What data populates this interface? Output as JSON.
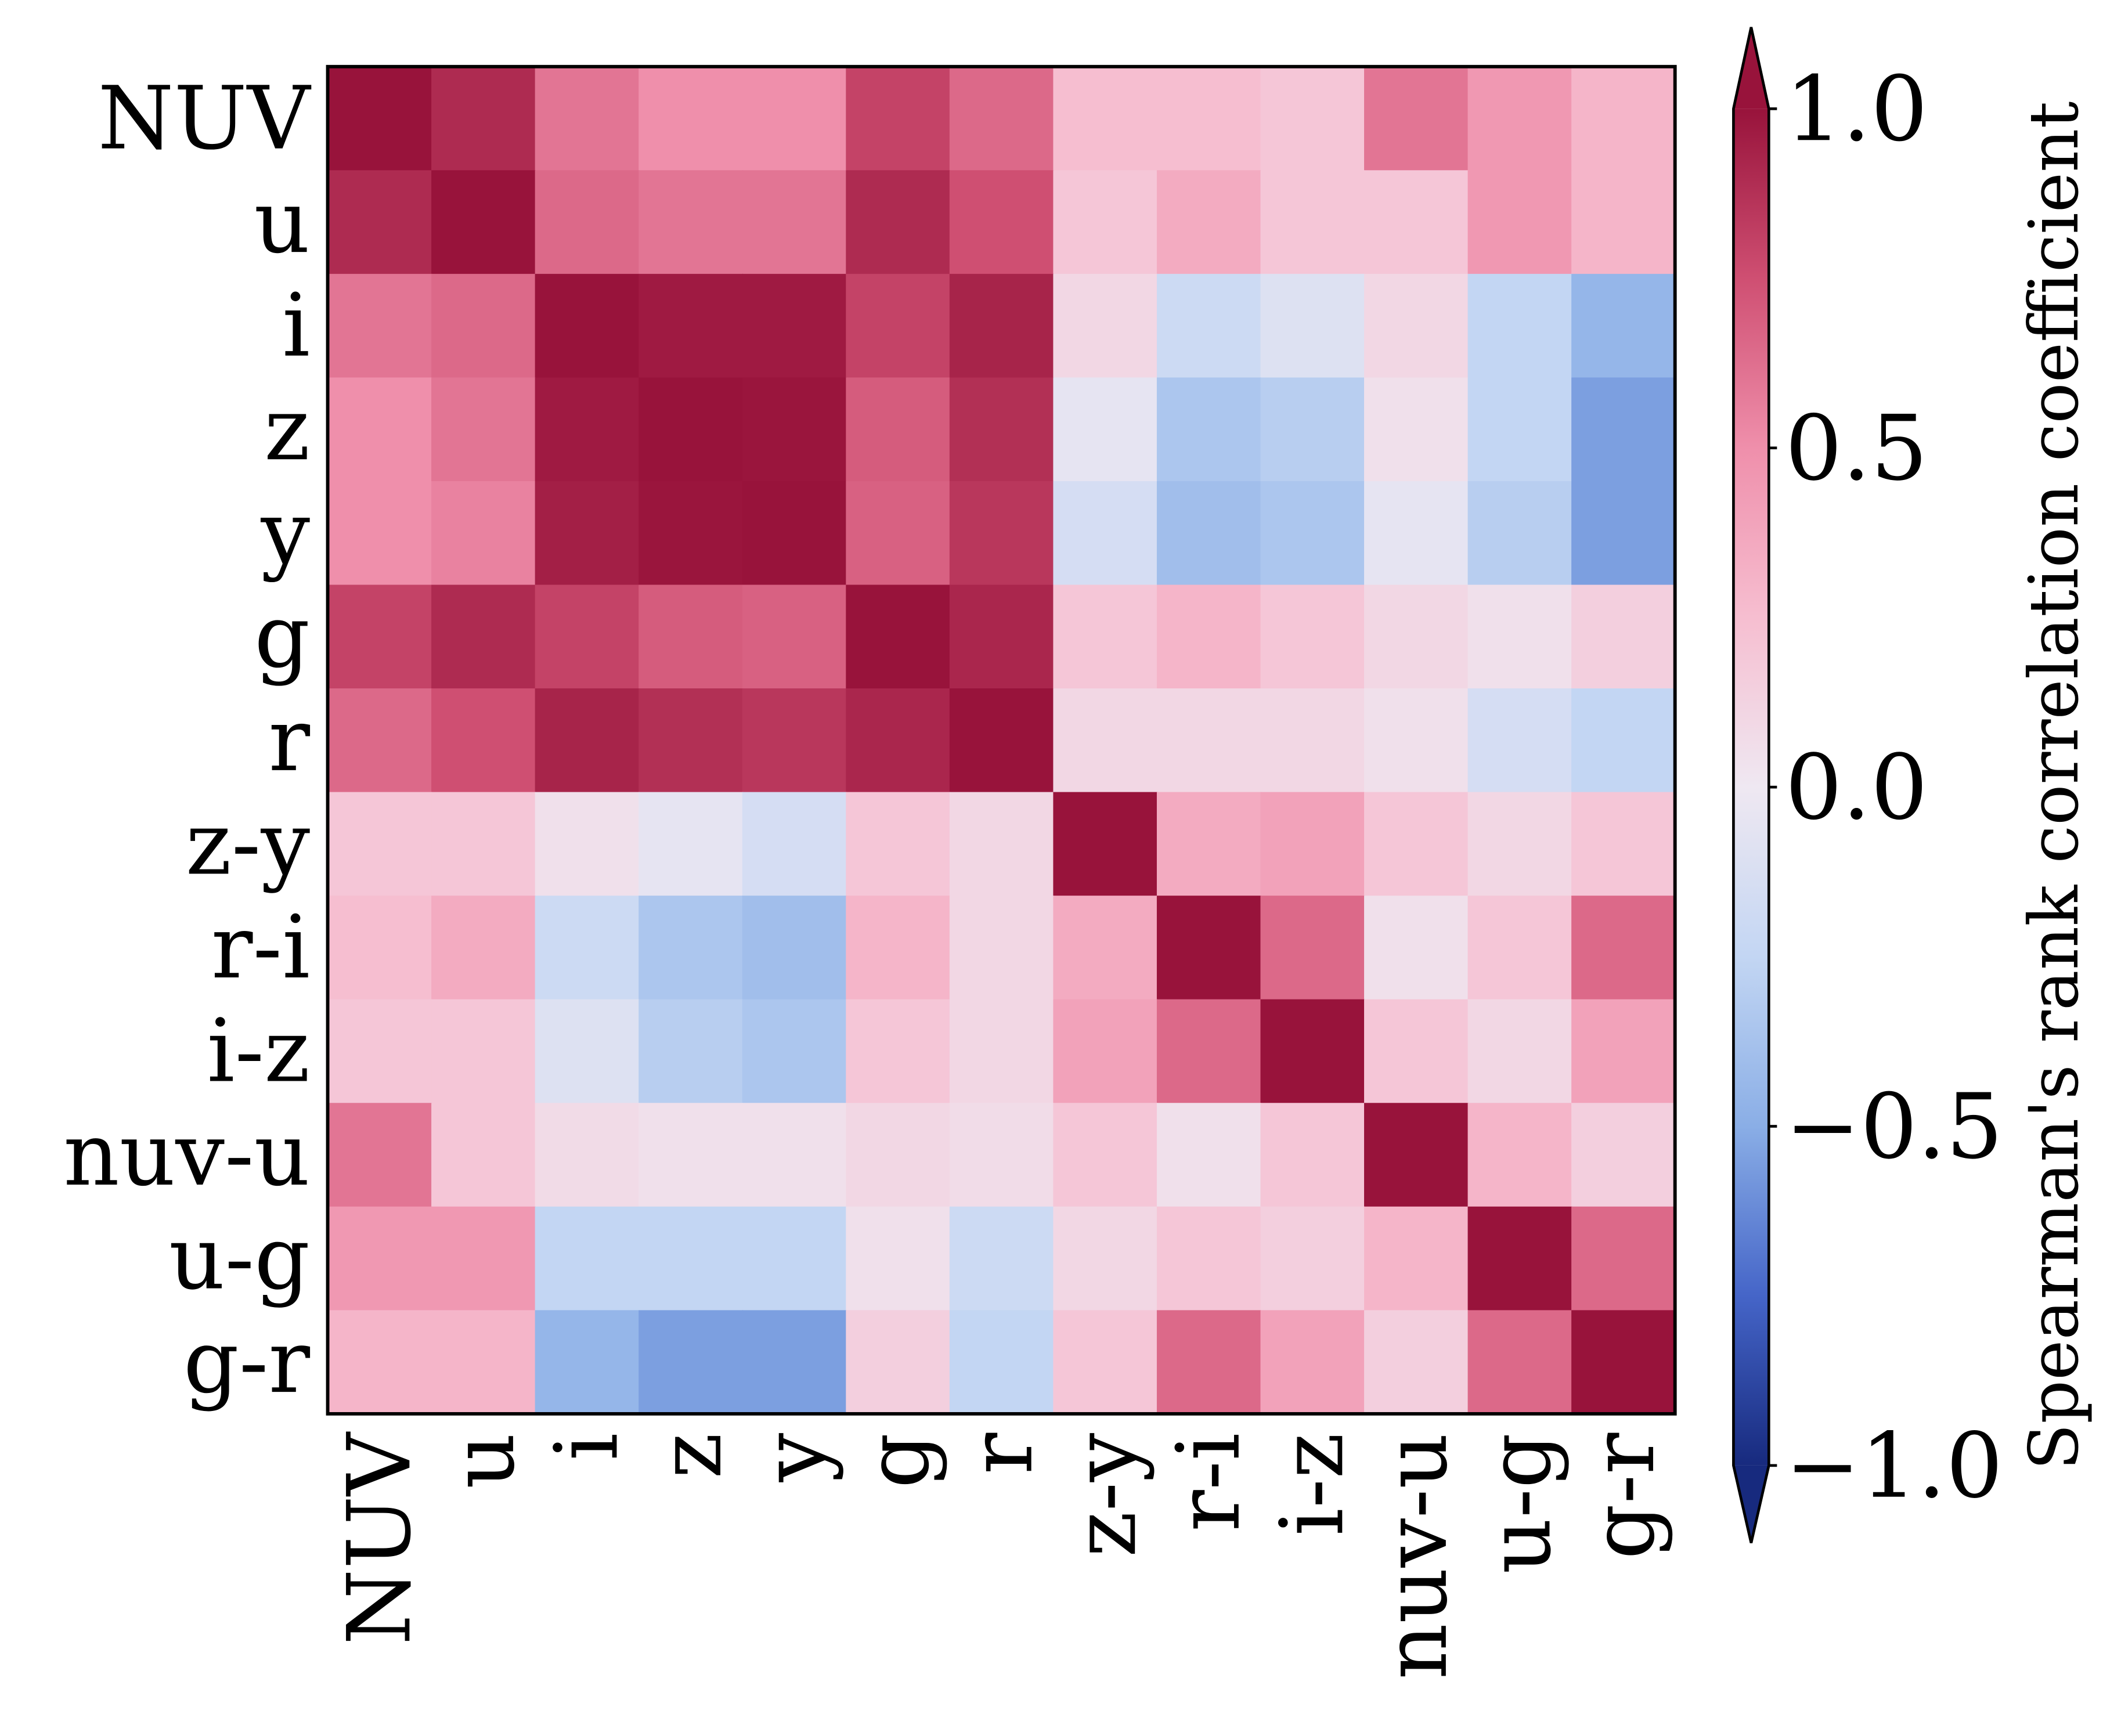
{
  "chart_data": {
    "type": "heatmap",
    "categories": [
      "NUV",
      "u",
      "i",
      "z",
      "y",
      "g",
      "r",
      "z-y",
      "r-i",
      "i-z",
      "nuv-u",
      "u-g",
      "g-r"
    ],
    "values": [
      [
        1,
        0.9,
        0.6,
        0.5,
        0.5,
        0.8,
        0.65,
        0.25,
        0.25,
        0.2,
        0.6,
        0.45,
        0.3
      ],
      [
        0.9,
        1,
        0.65,
        0.6,
        0.6,
        0.9,
        0.75,
        0.2,
        0.35,
        0.2,
        0.2,
        0.45,
        0.3
      ],
      [
        0.6,
        0.65,
        1,
        0.97,
        0.97,
        0.8,
        0.93,
        0.1,
        -0.2,
        -0.1,
        0.1,
        -0.25,
        -0.45
      ],
      [
        0.5,
        0.6,
        0.97,
        1,
        0.99,
        0.7,
        0.88,
        -0.05,
        -0.35,
        -0.3,
        0.05,
        -0.25,
        -0.55
      ],
      [
        0.5,
        0.55,
        0.95,
        0.99,
        1,
        0.68,
        0.85,
        -0.15,
        -0.4,
        -0.35,
        -0.05,
        -0.3,
        -0.55
      ],
      [
        0.8,
        0.9,
        0.8,
        0.7,
        0.68,
        1,
        0.92,
        0.2,
        0.3,
        0.2,
        0.1,
        0.05,
        0.15
      ],
      [
        0.65,
        0.75,
        0.93,
        0.88,
        0.85,
        0.92,
        1,
        0.1,
        0.1,
        0.1,
        0.05,
        -0.15,
        -0.25
      ],
      [
        0.2,
        0.2,
        0.05,
        -0.05,
        -0.15,
        0.2,
        0.1,
        1,
        0.35,
        0.4,
        0.2,
        0.1,
        0.2
      ],
      [
        0.25,
        0.35,
        -0.2,
        -0.35,
        -0.4,
        0.3,
        0.1,
        0.35,
        1,
        0.65,
        0.05,
        0.2,
        0.65
      ],
      [
        0.2,
        0.2,
        -0.1,
        -0.3,
        -0.35,
        0.2,
        0.1,
        0.4,
        0.65,
        1,
        0.2,
        0.1,
        0.4
      ],
      [
        0.6,
        0.2,
        0.08,
        0.05,
        0.05,
        0.1,
        0.07,
        0.2,
        0.05,
        0.2,
        1,
        0.3,
        0.15
      ],
      [
        0.45,
        0.45,
        -0.25,
        -0.25,
        -0.25,
        0.05,
        -0.2,
        0.1,
        0.2,
        0.15,
        0.3,
        1,
        0.65
      ],
      [
        0.3,
        0.3,
        -0.45,
        -0.55,
        -0.55,
        0.15,
        -0.25,
        0.2,
        0.65,
        0.4,
        0.15,
        0.65,
        1
      ]
    ],
    "colormap": [
      "#172a7e",
      "#4565c8",
      "#8aaee6",
      "#c3d6f3",
      "#efe8f2",
      "#f6bed0",
      "#ef8fab",
      "#cf4f72",
      "#98133b"
    ],
    "clim": [
      -1,
      1
    ],
    "colorbar_label": "Spearman's rank correlation coefficient",
    "colorbar_ticks": [
      {
        "value": 1,
        "label": "1.0"
      },
      {
        "value": 0.5,
        "label": "0.5"
      },
      {
        "value": 0,
        "label": "0.0"
      },
      {
        "value": -0.5,
        "label": "−0.5"
      },
      {
        "value": -1,
        "label": "−1.0"
      }
    ]
  }
}
